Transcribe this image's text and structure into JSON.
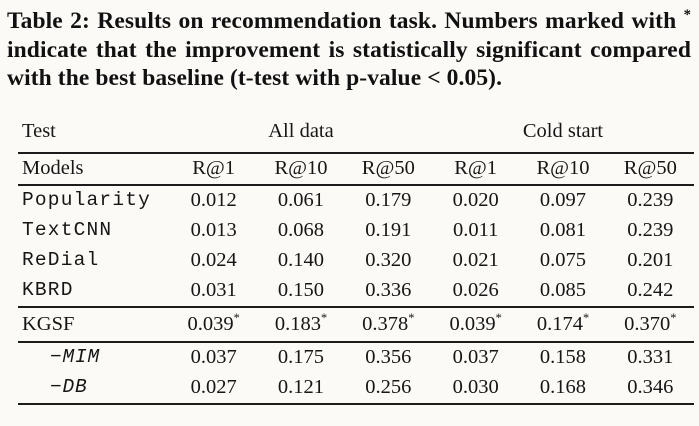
{
  "colors": {
    "background": "#fbfaf6",
    "text": "#141414",
    "rule": "#1c1c1c"
  },
  "caption": {
    "label": "Table 2:",
    "part1": " Results on recommendation task. Numbers marked with ",
    "marker": "*",
    "part2": " indicate that the improvement is statistically significant compared with the best baseline (t-test with p-value < 0.05)."
  },
  "table": {
    "significance_marker": "*",
    "header_row1": {
      "test_label": "Test",
      "all_data_label": "All data",
      "cold_start_label": "Cold start"
    },
    "header_row2": {
      "models_label": "Models",
      "metrics": [
        "R@1",
        "R@10",
        "R@50",
        "R@1",
        "R@10",
        "R@50"
      ]
    },
    "rows": [
      {
        "model": "Popularity",
        "style": "baseline",
        "starred": false,
        "values": [
          "0.012",
          "0.061",
          "0.179",
          "0.020",
          "0.097",
          "0.239"
        ]
      },
      {
        "model": "TextCNN",
        "style": "baseline",
        "starred": false,
        "values": [
          "0.013",
          "0.068",
          "0.191",
          "0.011",
          "0.081",
          "0.239"
        ]
      },
      {
        "model": "ReDial",
        "style": "baseline",
        "starred": false,
        "values": [
          "0.024",
          "0.140",
          "0.320",
          "0.021",
          "0.075",
          "0.201"
        ]
      },
      {
        "model": "KBRD",
        "style": "baseline",
        "starred": false,
        "values": [
          "0.031",
          "0.150",
          "0.336",
          "0.026",
          "0.085",
          "0.242"
        ]
      },
      {
        "model": "KGSF",
        "style": "main",
        "starred": true,
        "values": [
          "0.039",
          "0.183",
          "0.378",
          "0.039",
          "0.174",
          "0.370"
        ]
      },
      {
        "model": "−MIM",
        "style": "ablation",
        "starred": false,
        "values": [
          "0.037",
          "0.175",
          "0.356",
          "0.037",
          "0.158",
          "0.331"
        ]
      },
      {
        "model": "−DB",
        "style": "ablation",
        "starred": false,
        "values": [
          "0.027",
          "0.121",
          "0.256",
          "0.030",
          "0.168",
          "0.346"
        ]
      }
    ]
  }
}
